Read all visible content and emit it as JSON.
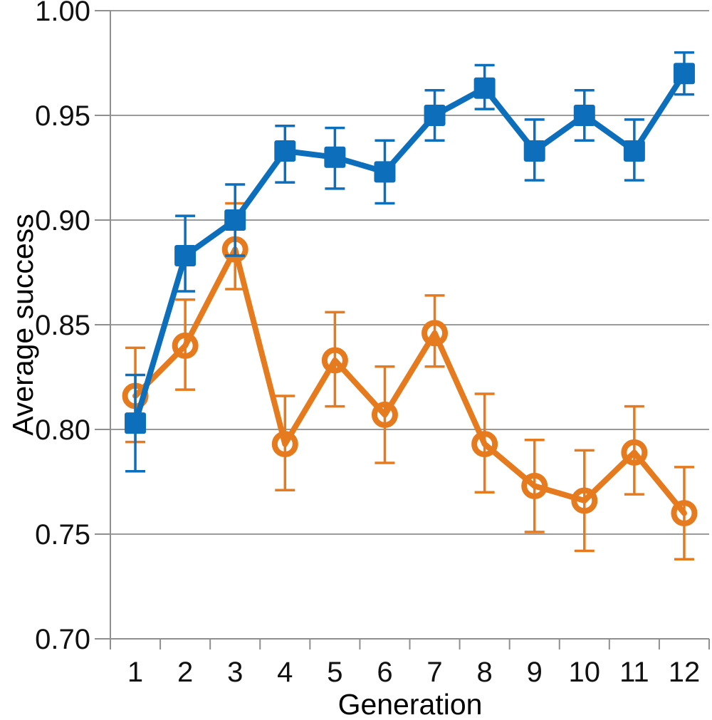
{
  "chart_data": {
    "type": "line",
    "title": "",
    "xlabel": "Generation",
    "ylabel": "Average success",
    "x_tick_labels": [
      "1",
      "2",
      "3",
      "4",
      "5",
      "6",
      "7",
      "8",
      "9",
      "10",
      "11",
      "12"
    ],
    "y_ticks": [
      0.7,
      0.75,
      0.8,
      0.85,
      0.9,
      0.95,
      1.0
    ],
    "y_tick_labels": [
      "0.70",
      "0.75",
      "0.80",
      "0.85",
      "0.90",
      "0.95",
      "1.00"
    ],
    "ylim": [
      0.7,
      1.0
    ],
    "grid": "horizontal-gridlines",
    "legend": "none",
    "error_bars": true,
    "colors": {
      "grid": "#9A9A9A",
      "axis": "#8F8F8F",
      "text": "#111111"
    },
    "series": [
      {
        "id": "orange-open-circles",
        "marker": "open-circle",
        "color": "#E67A1E",
        "points": [
          {
            "x": 1,
            "y": 0.816,
            "lo": 0.794,
            "hi": 0.839
          },
          {
            "x": 2,
            "y": 0.84,
            "lo": 0.819,
            "hi": 0.862
          },
          {
            "x": 3,
            "y": 0.886,
            "lo": 0.867,
            "hi": 0.908
          },
          {
            "x": 4,
            "y": 0.793,
            "lo": 0.771,
            "hi": 0.816
          },
          {
            "x": 5,
            "y": 0.833,
            "lo": 0.811,
            "hi": 0.856
          },
          {
            "x": 6,
            "y": 0.807,
            "lo": 0.784,
            "hi": 0.83
          },
          {
            "x": 7,
            "y": 0.846,
            "lo": 0.83,
            "hi": 0.864
          },
          {
            "x": 8,
            "y": 0.793,
            "lo": 0.77,
            "hi": 0.817
          },
          {
            "x": 9,
            "y": 0.773,
            "lo": 0.751,
            "hi": 0.795
          },
          {
            "x": 10,
            "y": 0.766,
            "lo": 0.742,
            "hi": 0.79
          },
          {
            "x": 11,
            "y": 0.789,
            "lo": 0.769,
            "hi": 0.811
          },
          {
            "x": 12,
            "y": 0.76,
            "lo": 0.738,
            "hi": 0.782
          }
        ]
      },
      {
        "id": "blue-filled-squares",
        "marker": "filled-square",
        "color": "#0D6EBC",
        "points": [
          {
            "x": 1,
            "y": 0.803,
            "lo": 0.78,
            "hi": 0.826
          },
          {
            "x": 2,
            "y": 0.883,
            "lo": 0.866,
            "hi": 0.902
          },
          {
            "x": 3,
            "y": 0.9,
            "lo": 0.883,
            "hi": 0.917
          },
          {
            "x": 4,
            "y": 0.933,
            "lo": 0.918,
            "hi": 0.945
          },
          {
            "x": 5,
            "y": 0.93,
            "lo": 0.915,
            "hi": 0.944
          },
          {
            "x": 6,
            "y": 0.923,
            "lo": 0.908,
            "hi": 0.938
          },
          {
            "x": 7,
            "y": 0.95,
            "lo": 0.938,
            "hi": 0.962
          },
          {
            "x": 8,
            "y": 0.963,
            "lo": 0.953,
            "hi": 0.974
          },
          {
            "x": 9,
            "y": 0.933,
            "lo": 0.919,
            "hi": 0.948
          },
          {
            "x": 10,
            "y": 0.95,
            "lo": 0.938,
            "hi": 0.962
          },
          {
            "x": 11,
            "y": 0.933,
            "lo": 0.919,
            "hi": 0.948
          },
          {
            "x": 12,
            "y": 0.97,
            "lo": 0.96,
            "hi": 0.98
          }
        ]
      }
    ]
  }
}
